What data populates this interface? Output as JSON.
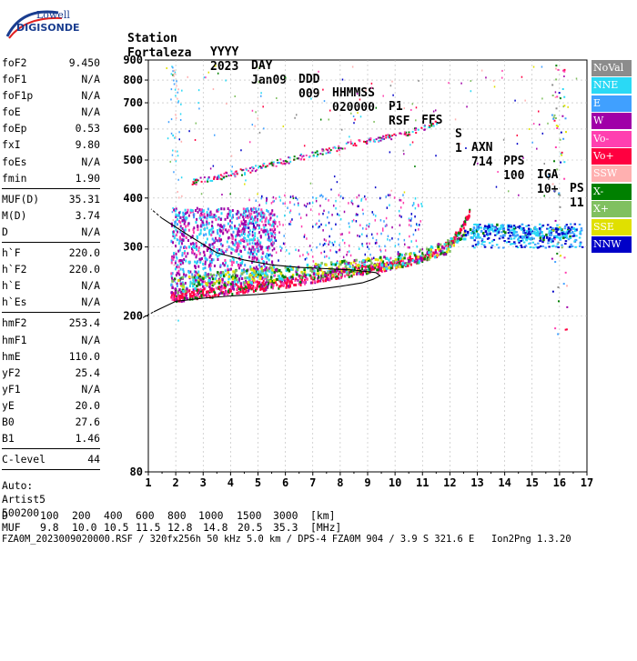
{
  "logo": {
    "line1": "Lowell",
    "line2": "DIGISONDE"
  },
  "header": {
    "labels": [
      "Station",
      "YYYY",
      "DAY",
      "DDD",
      "HHMMSS",
      "P1",
      "FFS",
      "S",
      "AXN",
      "PPS",
      "IGA",
      "PS"
    ],
    "values": [
      "Fortaleza",
      "2023",
      "Jan09",
      "009",
      "020000",
      "RSF",
      "",
      "1",
      "714",
      "100",
      "10+",
      "11"
    ]
  },
  "params": {
    "group1": [
      {
        "label": "foF2",
        "value": "9.450"
      },
      {
        "label": "foF1",
        "value": "N/A"
      },
      {
        "label": "foF1p",
        "value": "N/A"
      },
      {
        "label": "foE",
        "value": "N/A"
      },
      {
        "label": "foEp",
        "value": "0.53"
      },
      {
        "label": "fxI",
        "value": "9.80"
      },
      {
        "label": "foEs",
        "value": "N/A"
      },
      {
        "label": "fmin",
        "value": "1.90"
      }
    ],
    "group2": [
      {
        "label": "MUF(D)",
        "value": "35.31"
      },
      {
        "label": "M(D)",
        "value": "3.74"
      },
      {
        "label": "D",
        "value": "N/A"
      }
    ],
    "group3": [
      {
        "label": "h`F",
        "value": "220.0"
      },
      {
        "label": "h`F2",
        "value": "220.0"
      },
      {
        "label": "h`E",
        "value": "N/A"
      },
      {
        "label": "h`Es",
        "value": "N/A"
      }
    ],
    "group4": [
      {
        "label": "hmF2",
        "value": "253.4"
      },
      {
        "label": "hmF1",
        "value": "N/A"
      },
      {
        "label": "hmE",
        "value": "110.0"
      },
      {
        "label": "yF2",
        "value": "25.4"
      },
      {
        "label": "yF1",
        "value": "N/A"
      },
      {
        "label": "yE",
        "value": "20.0"
      },
      {
        "label": "B0",
        "value": "27.6"
      },
      {
        "label": "B1",
        "value": "1.46"
      }
    ],
    "group5": [
      {
        "label": "C-level",
        "value": "44"
      }
    ],
    "auto": [
      "Auto:",
      "Artist5",
      "500200"
    ]
  },
  "chart_data": {
    "type": "scatter",
    "xlabel": "",
    "ylabel": "",
    "xlim": [
      1,
      17
    ],
    "ylim": [
      80,
      900
    ],
    "y_scale": "log",
    "x_ticks": [
      1,
      2,
      3,
      4,
      5,
      6,
      7,
      8,
      9,
      10,
      11,
      12,
      13,
      14,
      15,
      16,
      17
    ],
    "y_ticks": [
      80,
      200,
      300,
      400,
      500,
      600,
      700,
      800,
      900
    ],
    "grid": "dashed",
    "legend_position": "right",
    "legend": [
      {
        "name": "NoVal",
        "color": "#8c8c8c"
      },
      {
        "name": "NNE",
        "color": "#2ad9f5"
      },
      {
        "name": "E",
        "color": "#40a0ff"
      },
      {
        "name": "W",
        "color": "#a000a8"
      },
      {
        "name": "Vo-",
        "color": "#ff40b0"
      },
      {
        "name": "Vo+",
        "color": "#ff0040"
      },
      {
        "name": "SSW",
        "color": "#ffb0b0"
      },
      {
        "name": "X-",
        "color": "#008000"
      },
      {
        "name": "X+",
        "color": "#80c060"
      },
      {
        "name": "SSE",
        "color": "#e0e000"
      },
      {
        "name": "NNW",
        "color": "#0000c8"
      }
    ],
    "trace_ordinary": {
      "freq": [
        1.8,
        2.5,
        3.5,
        4.5,
        5.5,
        6.5,
        7.5,
        8.5,
        9.5,
        10.5,
        11.5,
        12.0,
        12.4,
        12.7
      ],
      "height": [
        225,
        228,
        232,
        238,
        242,
        248,
        255,
        262,
        268,
        278,
        292,
        310,
        335,
        370
      ]
    },
    "trace_extraordinary": {
      "freq": [
        1.8,
        3.0,
        4.5,
        6.0,
        7.5,
        9.0,
        10.5,
        11.8,
        12.5,
        13.5,
        14.5,
        15.5,
        16.5
      ],
      "height": [
        240,
        248,
        255,
        260,
        265,
        272,
        282,
        300,
        325,
        335,
        330,
        325,
        330
      ]
    },
    "trace_second_hop": {
      "freq": [
        2.5,
        3.5,
        4.5,
        5.5,
        6.5,
        7.5,
        8.5,
        9.5,
        10.5,
        11.5
      ],
      "height": [
        440,
        455,
        470,
        490,
        510,
        530,
        555,
        570,
        590,
        625
      ]
    },
    "profile": {
      "freq": [
        1.2,
        2.0,
        3.0,
        4.0,
        5.0,
        6.0,
        7.0,
        8.0,
        8.8,
        9.2,
        9.45,
        9.3,
        8.5,
        7.5,
        6.5,
        5.5,
        4.5,
        3.5,
        2.5,
        1.5
      ],
      "height": [
        205,
        218,
        222,
        225,
        227,
        230,
        233,
        238,
        243,
        248,
        253.4,
        258,
        262,
        264,
        266,
        270,
        278,
        290,
        320,
        355
      ]
    }
  },
  "footer": {
    "d_label": "D",
    "d_values": [
      "100",
      "200",
      "400",
      "600",
      "800",
      "1000",
      "1500",
      "3000",
      "[km]"
    ],
    "muf_label": "MUF",
    "muf_values": [
      "9.8",
      "10.0",
      "10.5",
      "11.5",
      "12.8",
      "14.8",
      "20.5",
      "35.3",
      "[MHz]"
    ],
    "info": "FZA0M_2023009020000.RSF / 320fx256h 50 kHz 5.0 km / DPS-4 FZA0M 904 / 3.9 S 321.6 E   Ion2Png 1.3.20"
  }
}
